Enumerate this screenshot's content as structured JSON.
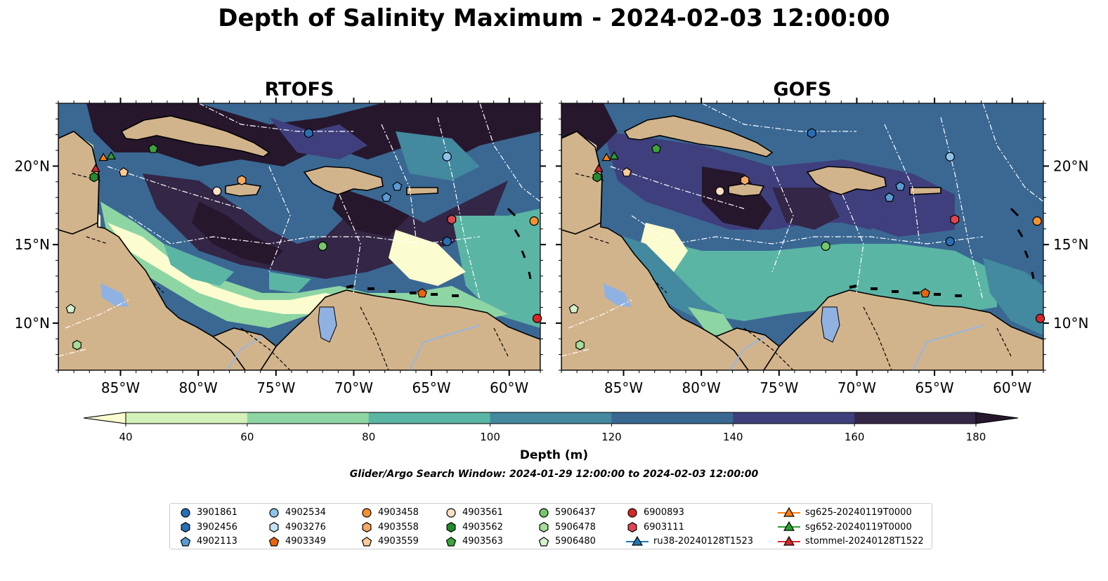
{
  "title": "Depth of Salinity Maximum - 2024-02-03 12:00:00",
  "maps": [
    {
      "title": "RTOFS"
    },
    {
      "title": "GOFS"
    }
  ],
  "axes": {
    "x_ticks": [
      "85°W",
      "80°W",
      "75°W",
      "70°W",
      "65°W",
      "60°W"
    ],
    "y_ticks": [
      "20°N",
      "15°N",
      "10°N"
    ]
  },
  "colorbar": {
    "label": "Depth (m)",
    "ticks": [
      "40",
      "60",
      "80",
      "100",
      "120",
      "140",
      "160",
      "180"
    ],
    "colors": [
      "#fbfccf",
      "#d3f0b8",
      "#8ed5a4",
      "#5bb5a4",
      "#43899f",
      "#3a6893",
      "#3f3f7d",
      "#332646",
      "#26172d"
    ]
  },
  "search_window": "Glider/Argo Search Window: 2024-01-29 12:00:00 to 2024-02-03 12:00:00",
  "legend": [
    {
      "label": "3901861",
      "shape": "circle",
      "color": "#2a6fb5"
    },
    {
      "label": "3902456",
      "shape": "hexagon",
      "color": "#2a6fb5"
    },
    {
      "label": "4902113",
      "shape": "pentagon",
      "color": "#5b9bd5"
    },
    {
      "label": "4902534",
      "shape": "circle",
      "color": "#8fc3ea"
    },
    {
      "label": "4903276",
      "shape": "hexagon",
      "color": "#c6e2f7"
    },
    {
      "label": "4903349",
      "shape": "pentagon",
      "color": "#e8650c"
    },
    {
      "label": "4903458",
      "shape": "circle",
      "color": "#f5922f"
    },
    {
      "label": "4903558",
      "shape": "hexagon",
      "color": "#f7a862"
    },
    {
      "label": "4903559",
      "shape": "pentagon",
      "color": "#fbc99a"
    },
    {
      "label": "4903561",
      "shape": "circle",
      "color": "#fde0c5"
    },
    {
      "label": "4903562",
      "shape": "hexagon",
      "color": "#238b2e"
    },
    {
      "label": "4903563",
      "shape": "pentagon",
      "color": "#3aa43a"
    },
    {
      "label": "5906437",
      "shape": "circle",
      "color": "#74c76a"
    },
    {
      "label": "5906478",
      "shape": "hexagon",
      "color": "#a6dd98"
    },
    {
      "label": "5906480",
      "shape": "pentagon",
      "color": "#d6f1cd"
    },
    {
      "label": "6900893",
      "shape": "circle",
      "color": "#d62728"
    },
    {
      "label": "6903111",
      "shape": "hexagon",
      "color": "#e0464f"
    },
    {
      "label": "ru38-20240128T1523",
      "shape": "triangle-line",
      "color": "#1f77b4"
    },
    {
      "label": "sg625-20240119T0000",
      "shape": "triangle-line",
      "color": "#ff7f0e"
    },
    {
      "label": "sg652-20240119T0000",
      "shape": "triangle-line",
      "color": "#2ca02c"
    },
    {
      "label": "stommel-20240128T1522",
      "shape": "triangle-line",
      "color": "#d62728"
    }
  ],
  "colors": {
    "land": "#d2b48c",
    "lake": "#8fb2e3",
    "river": "#97b6e1"
  }
}
